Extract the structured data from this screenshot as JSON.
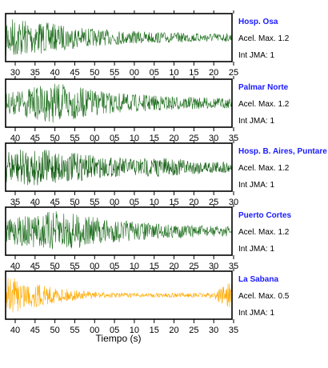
{
  "chart_data": {
    "type": "line",
    "xlabel": "Tiempo (s)",
    "panels": [
      {
        "station": "Hosp. Osa",
        "pga_label": "Acel. Max. 1.2",
        "jma_label": "Int JMA: 1",
        "color": "#1e6e1e",
        "tick_labels": [
          "30",
          "35",
          "40",
          "45",
          "50",
          "55",
          "00",
          "05",
          "10",
          "15",
          "20",
          "25"
        ],
        "amplitude_envelope": [
          0.95,
          0.8,
          0.6,
          0.45,
          0.35,
          0.3,
          0.25,
          0.22,
          0.2,
          0.18
        ]
      },
      {
        "station": "Palmar Norte",
        "pga_label": "Acel. Max. 1.2",
        "jma_label": "Int JMA: 1",
        "color": "#1e6e1e",
        "tick_labels": [
          "40",
          "45",
          "50",
          "55",
          "00",
          "05",
          "10",
          "15",
          "20",
          "25",
          "30",
          "35"
        ],
        "amplitude_envelope": [
          0.45,
          0.7,
          0.9,
          0.7,
          0.5,
          0.4,
          0.35,
          0.3,
          0.25,
          0.22
        ]
      },
      {
        "station": "Hosp. B. Aires, Puntare",
        "pga_label": "Acel. Max. 1.2",
        "jma_label": "Int JMA: 1",
        "color": "#0d5a0d",
        "tick_labels": [
          "35",
          "40",
          "45",
          "50",
          "55",
          "00",
          "05",
          "10",
          "15",
          "20",
          "25",
          "30"
        ],
        "amplitude_envelope": [
          0.7,
          0.85,
          0.75,
          0.6,
          0.45,
          0.4,
          0.45,
          0.35,
          0.3,
          0.25
        ]
      },
      {
        "station": "Puerto Cortes",
        "pga_label": "Acel. Max. 1.2",
        "jma_label": "Int JMA: 1",
        "color": "#1e6e1e",
        "tick_labels": [
          "40",
          "45",
          "50",
          "55",
          "00",
          "05",
          "10",
          "15",
          "20",
          "25",
          "30",
          "35"
        ],
        "amplitude_envelope": [
          0.5,
          0.75,
          0.9,
          0.75,
          0.55,
          0.45,
          0.35,
          0.3,
          0.25,
          0.22
        ]
      },
      {
        "station": "La Sabana",
        "pga_label": "Acel. Max. 0.5",
        "jma_label": "Int JMA: 1",
        "color": "#ffaa00",
        "tick_labels": [
          "40",
          "45",
          "50",
          "55",
          "00",
          "05",
          "10",
          "15",
          "20",
          "25",
          "30",
          "35"
        ],
        "amplitude_envelope": [
          0.85,
          0.6,
          0.35,
          0.2,
          0.12,
          0.1,
          0.1,
          0.1,
          0.1,
          0.6
        ]
      }
    ]
  }
}
